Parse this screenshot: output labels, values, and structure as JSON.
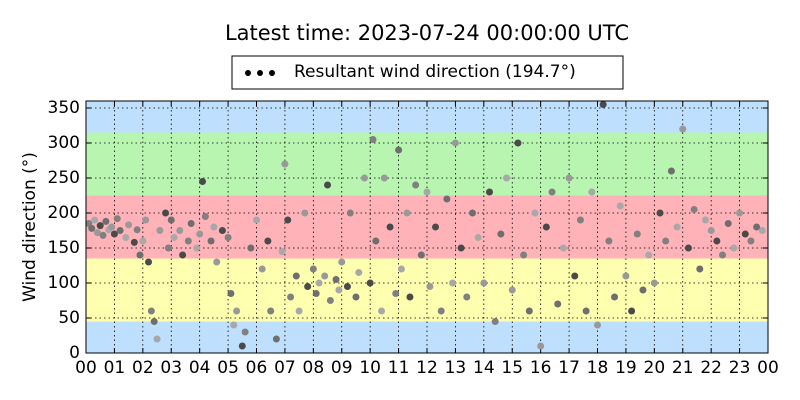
{
  "chart_data": {
    "type": "scatter",
    "title": "Latest time: 2023-07-24 00:00:00 UTC",
    "y_label": "Wind direction (°)",
    "xlim": [
      0,
      24
    ],
    "ylim": [
      0,
      360
    ],
    "xticks": [
      {
        "value": 0,
        "label": "00"
      },
      {
        "value": 1,
        "label": "01"
      },
      {
        "value": 2,
        "label": "02"
      },
      {
        "value": 3,
        "label": "03"
      },
      {
        "value": 4,
        "label": "04"
      },
      {
        "value": 5,
        "label": "05"
      },
      {
        "value": 6,
        "label": "06"
      },
      {
        "value": 7,
        "label": "07"
      },
      {
        "value": 8,
        "label": "08"
      },
      {
        "value": 9,
        "label": "09"
      },
      {
        "value": 10,
        "label": "10"
      },
      {
        "value": 11,
        "label": "11"
      },
      {
        "value": 12,
        "label": "12"
      },
      {
        "value": 13,
        "label": "13"
      },
      {
        "value": 14,
        "label": "14"
      },
      {
        "value": 15,
        "label": "15"
      },
      {
        "value": 16,
        "label": "16"
      },
      {
        "value": 17,
        "label": "17"
      },
      {
        "value": 18,
        "label": "18"
      },
      {
        "value": 19,
        "label": "19"
      },
      {
        "value": 20,
        "label": "20"
      },
      {
        "value": 21,
        "label": "21"
      },
      {
        "value": 22,
        "label": "22"
      },
      {
        "value": 23,
        "label": "23"
      },
      {
        "value": 24,
        "label": "00"
      }
    ],
    "yticks": [
      0,
      50,
      100,
      150,
      200,
      250,
      300,
      350
    ],
    "grid": true,
    "bands": [
      {
        "from": 0,
        "to": 45,
        "color": "#bfdfff"
      },
      {
        "from": 45,
        "to": 135,
        "color": "#ffffb0"
      },
      {
        "from": 135,
        "to": 225,
        "color": "#ffb3b8"
      },
      {
        "from": 225,
        "to": 315,
        "color": "#b8f5b0"
      },
      {
        "from": 315,
        "to": 360,
        "color": "#bfdfff"
      }
    ],
    "legend_marker_color": "#000000",
    "x": [
      0.1,
      0.2,
      0.3,
      0.4,
      0.5,
      0.6,
      0.7,
      0.8,
      0.9,
      1.0,
      1.1,
      1.2,
      1.4,
      1.5,
      1.7,
      1.8,
      1.9,
      2.0,
      2.1,
      2.2,
      2.3,
      2.4,
      2.5,
      2.6,
      2.8,
      2.9,
      3.0,
      3.1,
      3.3,
      3.4,
      3.6,
      3.7,
      3.9,
      4.0,
      4.1,
      4.2,
      4.4,
      4.5,
      4.6,
      4.8,
      5.0,
      5.1,
      5.2,
      5.3,
      5.5,
      5.6,
      5.8,
      6.0,
      6.2,
      6.4,
      6.5,
      6.7,
      6.9,
      7.0,
      7.1,
      7.2,
      7.4,
      7.5,
      7.7,
      7.8,
      8.0,
      8.1,
      8.2,
      8.4,
      8.5,
      8.6,
      8.8,
      8.9,
      9.0,
      9.2,
      9.3,
      9.5,
      9.6,
      9.8,
      10.0,
      10.1,
      10.2,
      10.4,
      10.5,
      10.7,
      10.9,
      11.0,
      11.1,
      11.3,
      11.4,
      11.6,
      11.8,
      12.0,
      12.1,
      12.3,
      12.5,
      12.7,
      12.9,
      13.0,
      13.2,
      13.4,
      13.6,
      13.8,
      14.0,
      14.2,
      14.4,
      14.6,
      14.8,
      15.0,
      15.2,
      15.4,
      15.6,
      15.8,
      16.0,
      16.2,
      16.4,
      16.6,
      16.8,
      17.0,
      17.2,
      17.4,
      17.6,
      17.8,
      18.0,
      18.2,
      18.4,
      18.6,
      18.8,
      19.0,
      19.2,
      19.4,
      19.6,
      19.8,
      20.0,
      20.2,
      20.4,
      20.6,
      20.8,
      21.0,
      21.2,
      21.4,
      21.6,
      21.8,
      22.0,
      22.2,
      22.4,
      22.6,
      22.8,
      23.0,
      23.2,
      23.4,
      23.6,
      23.8
    ],
    "series": [
      {
        "name": "Resultant wind direction (194.7°)",
        "color": "#808080",
        "values": [
          185,
          178,
          190,
          172,
          182,
          168,
          188,
          176,
          180,
          170,
          192,
          175,
          165,
          183,
          158,
          176,
          140,
          160,
          190,
          130,
          60,
          45,
          20,
          175,
          200,
          150,
          190,
          165,
          175,
          140,
          160,
          185,
          150,
          170,
          245,
          195,
          160,
          180,
          130,
          175,
          165,
          85,
          40,
          60,
          10,
          30,
          150,
          190,
          120,
          160,
          60,
          20,
          145,
          270,
          190,
          80,
          110,
          60,
          200,
          95,
          120,
          85,
          100,
          110,
          240,
          75,
          105,
          90,
          130,
          95,
          200,
          80,
          115,
          250,
          100,
          305,
          160,
          60,
          250,
          180,
          85,
          290,
          120,
          200,
          80,
          240,
          140,
          230,
          95,
          180,
          60,
          220,
          100,
          300,
          150,
          80,
          200,
          165,
          100,
          230,
          45,
          170,
          250,
          90,
          300,
          140,
          60,
          200,
          10,
          180,
          230,
          70,
          150,
          250,
          110,
          190,
          60,
          230,
          40,
          355,
          160,
          80,
          210,
          110,
          60,
          170,
          90,
          140,
          100,
          200,
          160,
          260,
          180,
          320,
          150,
          205,
          120,
          190,
          175,
          160,
          140,
          185,
          150,
          200,
          170,
          160,
          180,
          175
        ]
      }
    ]
  }
}
